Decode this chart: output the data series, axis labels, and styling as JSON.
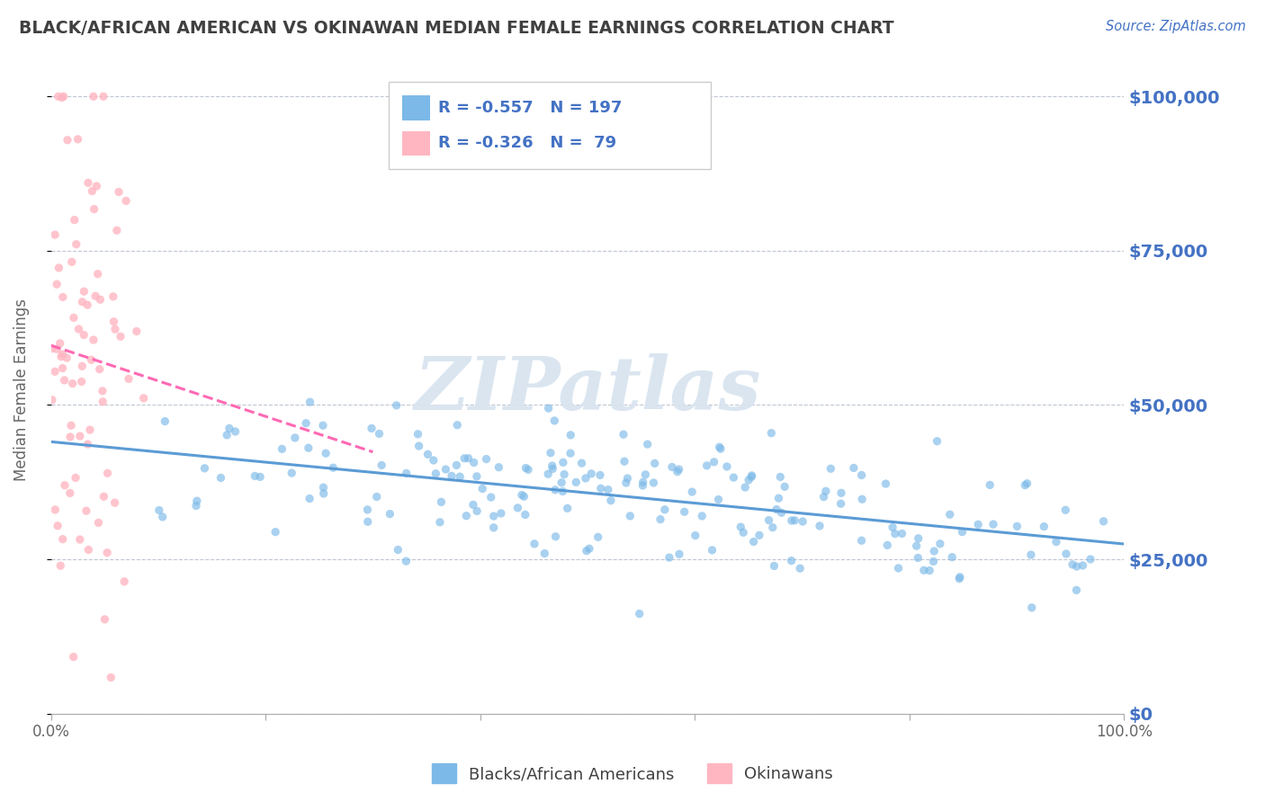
{
  "title": "BLACK/AFRICAN AMERICAN VS OKINAWAN MEDIAN FEMALE EARNINGS CORRELATION CHART",
  "source": "Source: ZipAtlas.com",
  "ylabel": "Median Female Earnings",
  "blue_label": "Blacks/African Americans",
  "pink_label": "Okinawans",
  "blue_R": -0.557,
  "blue_N": 197,
  "pink_R": -0.326,
  "pink_N": 79,
  "blue_color": "#7cb9e8",
  "pink_color": "#ffb6c1",
  "blue_line_color": "#5b9bd5",
  "pink_line_color": "#ff69b4",
  "axis_label_color": "#4472c4",
  "title_color": "#404040",
  "watermark_text": "ZIPatlas",
  "watermark_color": "#d8e4f0",
  "y_ticks": [
    0,
    25000,
    50000,
    75000,
    100000
  ],
  "y_tick_labels": [
    "$0",
    "$25,000",
    "$50,000",
    "$75,000",
    "$100,000"
  ],
  "x_ticks": [
    0.0,
    0.2,
    0.4,
    0.6,
    0.8,
    1.0
  ],
  "x_tick_labels": [
    "0.0%",
    "",
    "",
    "",
    "",
    "100.0%"
  ],
  "xlim": [
    0.0,
    1.0
  ],
  "ylim": [
    0,
    105000
  ],
  "background_color": "#ffffff",
  "grid_color": "#b0b8c8"
}
